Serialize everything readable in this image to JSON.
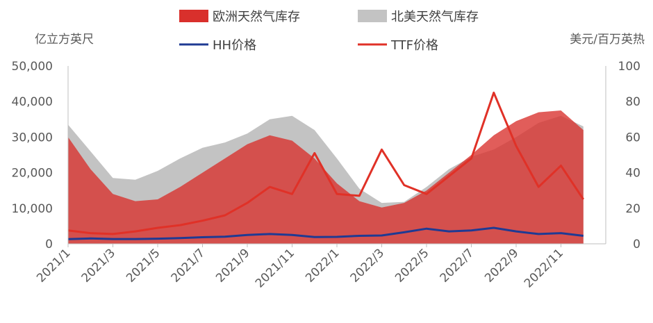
{
  "chart_data": {
    "type": "area",
    "left_axis_unit": "亿立方英尺",
    "right_axis_unit": "美元/百万英热",
    "left_ylim": [
      0,
      50000
    ],
    "right_ylim": [
      0,
      100
    ],
    "left_ticks": [
      "0",
      "10,000",
      "20,000",
      "30,000",
      "40,000",
      "50,000"
    ],
    "right_ticks": [
      "0",
      "20",
      "40",
      "60",
      "80",
      "100"
    ],
    "x_range": [
      "2021/1",
      "2022/12"
    ],
    "x_ticks": [
      "2021/1",
      "2021/3",
      "2021/5",
      "2021/7",
      "2021/9",
      "2021/11",
      "2022/1",
      "2022/3",
      "2022/5",
      "2022/7",
      "2022/9",
      "2022/11"
    ],
    "grid": false,
    "legend_position": "top",
    "series": [
      {
        "name": "欧洲天然气库存",
        "kind": "area",
        "axis": "left",
        "color": "#d9302c",
        "x": [
          "2021/1",
          "2021/2",
          "2021/3",
          "2021/4",
          "2021/5",
          "2021/6",
          "2021/7",
          "2021/8",
          "2021/9",
          "2021/10",
          "2021/11",
          "2021/12",
          "2022/1",
          "2022/2",
          "2022/3",
          "2022/4",
          "2022/5",
          "2022/6",
          "2022/7",
          "2022/8",
          "2022/9",
          "2022/10",
          "2022/11",
          "2022/12"
        ],
        "values": [
          30000,
          21000,
          14000,
          12000,
          12500,
          16000,
          20000,
          24000,
          28000,
          30500,
          29000,
          24000,
          17000,
          12000,
          10200,
          11500,
          15000,
          20000,
          25000,
          30500,
          34500,
          37000,
          37500,
          32000
        ]
      },
      {
        "name": "北美天然气库存",
        "kind": "area",
        "axis": "left",
        "color": "#c3c3c3",
        "x": [
          "2021/1",
          "2021/2",
          "2021/3",
          "2021/4",
          "2021/5",
          "2021/6",
          "2021/7",
          "2021/8",
          "2021/9",
          "2021/10",
          "2021/11",
          "2021/12",
          "2022/1",
          "2022/2",
          "2022/3",
          "2022/4",
          "2022/5",
          "2022/6",
          "2022/7",
          "2022/8",
          "2022/9",
          "2022/10",
          "2022/11",
          "2022/12"
        ],
        "values": [
          33500,
          26000,
          18500,
          18000,
          20500,
          24000,
          27000,
          28500,
          31000,
          35000,
          36000,
          32000,
          24000,
          15500,
          11500,
          11800,
          16000,
          21000,
          24500,
          26500,
          30000,
          34000,
          36000,
          33000
        ]
      },
      {
        "name": "HH价格",
        "kind": "line",
        "axis": "right",
        "color": "#1f3a93",
        "x": [
          "2021/1",
          "2021/2",
          "2021/3",
          "2021/4",
          "2021/5",
          "2021/6",
          "2021/7",
          "2021/8",
          "2021/9",
          "2021/10",
          "2021/11",
          "2021/12",
          "2022/1",
          "2022/2",
          "2022/3",
          "2022/4",
          "2022/5",
          "2022/6",
          "2022/7",
          "2022/8",
          "2022/9",
          "2022/10",
          "2022/11",
          "2022/12"
        ],
        "values": [
          2.6,
          3.0,
          2.7,
          2.7,
          2.9,
          3.2,
          3.7,
          4.0,
          5.0,
          5.5,
          5.0,
          3.8,
          3.9,
          4.5,
          4.7,
          6.5,
          8.5,
          7.0,
          7.5,
          9.0,
          7.0,
          5.5,
          6.0,
          4.5
        ]
      },
      {
        "name": "TTF价格",
        "kind": "line",
        "axis": "right",
        "color": "#e03127",
        "x": [
          "2021/1",
          "2021/2",
          "2021/3",
          "2021/4",
          "2021/5",
          "2021/6",
          "2021/7",
          "2021/8",
          "2021/9",
          "2021/10",
          "2021/11",
          "2021/12",
          "2022/1",
          "2022/2",
          "2022/3",
          "2022/4",
          "2022/5",
          "2022/6",
          "2022/7",
          "2022/8",
          "2022/9",
          "2022/10",
          "2022/11",
          "2022/12"
        ],
        "values": [
          7.5,
          6.0,
          5.5,
          7.0,
          9.0,
          10.5,
          13.0,
          16.0,
          23.0,
          32.0,
          28.0,
          51.0,
          28.0,
          27.0,
          53.0,
          33.0,
          28.0,
          38.0,
          48.0,
          85.0,
          55.0,
          32.0,
          44.0,
          25.0
        ]
      }
    ]
  }
}
